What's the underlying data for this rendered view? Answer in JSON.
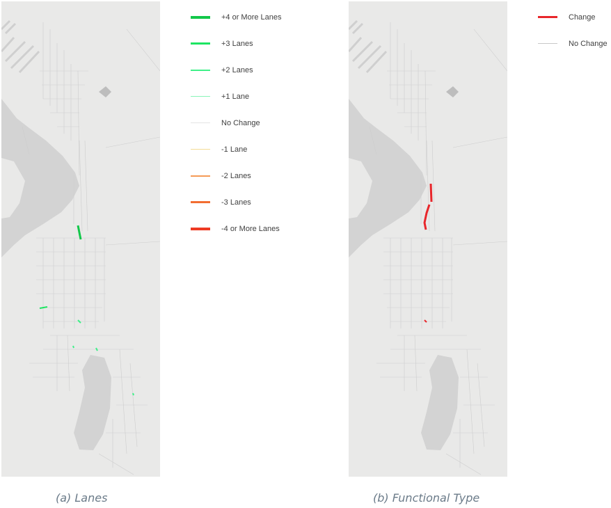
{
  "panels": [
    {
      "caption": "(a) Lanes",
      "legend": [
        {
          "label": "+4 or More Lanes",
          "color": "#12c74a",
          "weight": "heavy"
        },
        {
          "label": "+3 Lanes",
          "color": "#1de562",
          "weight": "thick"
        },
        {
          "label": "+2 Lanes",
          "color": "#3ff089",
          "weight": "medium"
        },
        {
          "label": "+1 Lane",
          "color": "#8af5b8",
          "weight": "thin"
        },
        {
          "label": "No Change",
          "color": "#e4e4e4",
          "weight": "hairline"
        },
        {
          "label": "-1 Lane",
          "color": "#f3dc94",
          "weight": "thin"
        },
        {
          "label": "-2 Lanes",
          "color": "#f59a56",
          "weight": "medium"
        },
        {
          "label": "-3 Lanes",
          "color": "#f26d31",
          "weight": "thick"
        },
        {
          "label": "-4 or More Lanes",
          "color": "#ee3a23",
          "weight": "heavy"
        }
      ]
    },
    {
      "caption": "(b) Functional Type",
      "legend": [
        {
          "label": "Change",
          "color": "#e8262b",
          "weight": "thick"
        },
        {
          "label": "No Change",
          "color": "#c8c8c8",
          "weight": "hairline"
        }
      ]
    }
  ]
}
